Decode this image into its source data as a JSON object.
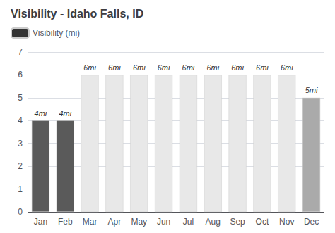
{
  "chart_data": {
    "type": "bar",
    "title": "Visibility - Idaho Falls, ID",
    "categories": [
      "Jan",
      "Feb",
      "Mar",
      "Apr",
      "May",
      "Jun",
      "Jul",
      "Aug",
      "Sep",
      "Oct",
      "Nov",
      "Dec"
    ],
    "series": [
      {
        "name": "Visibility (mi)",
        "color": "#333333",
        "colors": [
          "#5a5a5a",
          "#5a5a5a",
          "#e8e8e8",
          "#e8e8e8",
          "#e8e8e8",
          "#e8e8e8",
          "#e8e8e8",
          "#e8e8e8",
          "#e8e8e8",
          "#e8e8e8",
          "#e8e8e8",
          "#aaaaaa"
        ],
        "values": [
          4,
          4,
          6,
          6,
          6,
          6,
          6,
          6,
          6,
          6,
          6,
          5
        ],
        "value_labels": [
          "4mi",
          "4mi",
          "6mi",
          "6mi",
          "6mi",
          "6mi",
          "6mi",
          "6mi",
          "6mi",
          "6mi",
          "6mi",
          "5mi"
        ]
      }
    ],
    "ylim": [
      0,
      7
    ],
    "yticks": [
      0,
      1,
      2,
      3,
      4,
      5,
      6,
      7
    ],
    "grid": true,
    "legend": "top-left",
    "data_labels": true
  }
}
